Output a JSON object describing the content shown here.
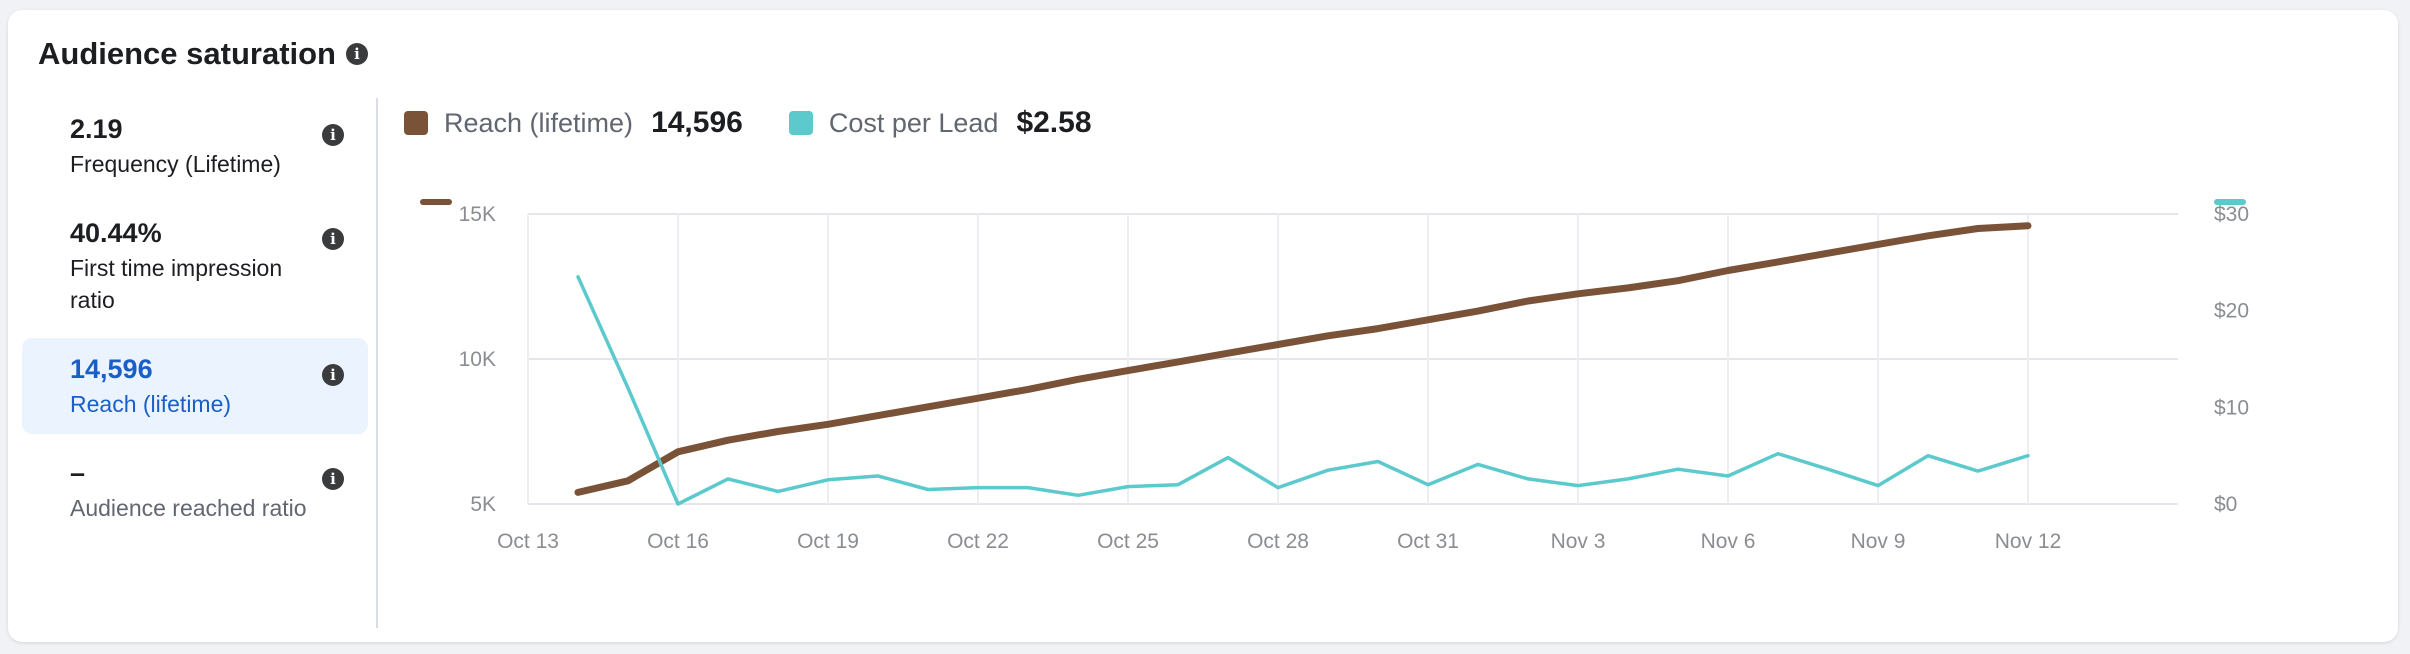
{
  "title": "Audience saturation",
  "metrics": [
    {
      "value": "2.19",
      "label": "Frequency (Lifetime)"
    },
    {
      "value": "40.44%",
      "label": "First time impression ratio"
    },
    {
      "value": "14,596",
      "label": "Reach (lifetime)"
    },
    {
      "value": "–",
      "label": "Audience reached ratio"
    }
  ],
  "legend": {
    "reach_label": "Reach (lifetime)",
    "reach_value": "14,596",
    "cpl_label": "Cost per Lead",
    "cpl_value": "$2.58"
  },
  "colors": {
    "reach": "#7a5238",
    "cpl": "#5cc9cc",
    "selected": "#1a5fc7"
  },
  "chart_data": {
    "type": "line",
    "x": [
      "Oct 14",
      "Oct 15",
      "Oct 16",
      "Oct 17",
      "Oct 18",
      "Oct 19",
      "Oct 20",
      "Oct 21",
      "Oct 22",
      "Oct 23",
      "Oct 24",
      "Oct 25",
      "Oct 26",
      "Oct 27",
      "Oct 28",
      "Oct 29",
      "Oct 30",
      "Oct 31",
      "Nov 1",
      "Nov 2",
      "Nov 3",
      "Nov 4",
      "Nov 5",
      "Nov 6",
      "Nov 7",
      "Nov 8",
      "Nov 9",
      "Nov 10",
      "Nov 11",
      "Nov 12"
    ],
    "x_ticks": [
      "Oct 13",
      "Oct 16",
      "Oct 19",
      "Oct 22",
      "Oct 25",
      "Oct 28",
      "Oct 31",
      "Nov 3",
      "Nov 6",
      "Nov 9",
      "Nov 12"
    ],
    "x_range": [
      "Oct 13",
      "Nov 15"
    ],
    "series": [
      {
        "name": "Reach (lifetime)",
        "axis": "left",
        "values": [
          5400,
          5800,
          6800,
          7200,
          7500,
          7750,
          8050,
          8350,
          8650,
          8950,
          9300,
          9600,
          9900,
          10200,
          10500,
          10800,
          11050,
          11350,
          11650,
          12000,
          12250,
          12450,
          12700,
          13050,
          13350,
          13650,
          13950,
          14250,
          14500,
          14596
        ]
      },
      {
        "name": "Cost per Lead",
        "axis": "right",
        "values": [
          23.5,
          12.0,
          0.0,
          2.6,
          1.3,
          2.5,
          2.9,
          1.5,
          1.7,
          1.7,
          0.9,
          1.8,
          2.0,
          4.8,
          1.7,
          3.5,
          4.4,
          2.0,
          4.1,
          2.6,
          1.9,
          2.6,
          3.6,
          2.9,
          5.2,
          3.6,
          1.9,
          5.0,
          3.4,
          5.0
        ]
      }
    ],
    "y_left": {
      "ticks": [
        "5K",
        "10K",
        "15K"
      ],
      "tick_values": [
        5000,
        10000,
        15000
      ],
      "range": [
        5000,
        15000
      ]
    },
    "y_right": {
      "ticks": [
        "$0",
        "$10",
        "$20",
        "$30"
      ],
      "tick_values": [
        0,
        10,
        20,
        30
      ],
      "range": [
        0,
        30
      ]
    },
    "grid": true,
    "legend_position": "top-left"
  }
}
